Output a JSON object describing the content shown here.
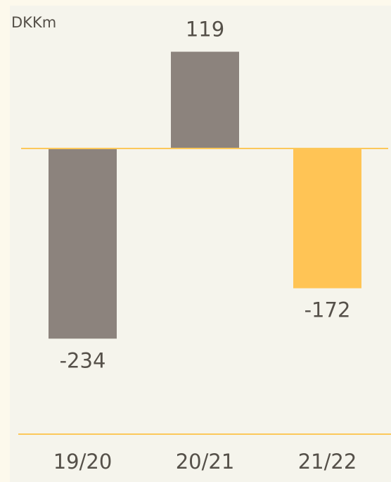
{
  "chart_data": {
    "type": "bar",
    "axis_label": "DKKm",
    "categories": [
      "19/20",
      "20/21",
      "21/22"
    ],
    "values": [
      -234,
      119,
      -172
    ],
    "colors": [
      "#8c837d",
      "#8c837d",
      "#ffc455"
    ],
    "ylim": [
      -300,
      150
    ]
  }
}
